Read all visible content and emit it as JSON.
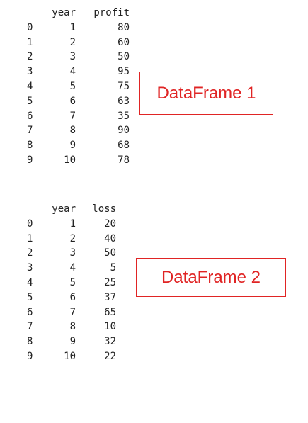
{
  "dataframe1": {
    "columns": [
      "year",
      "profit"
    ],
    "index": [
      "0",
      "1",
      "2",
      "3",
      "4",
      "5",
      "6",
      "7",
      "8",
      "9"
    ],
    "rows": [
      [
        "1",
        "80"
      ],
      [
        "2",
        "60"
      ],
      [
        "3",
        "50"
      ],
      [
        "4",
        "95"
      ],
      [
        "5",
        "75"
      ],
      [
        "6",
        "63"
      ],
      [
        "7",
        "35"
      ],
      [
        "8",
        "90"
      ],
      [
        "9",
        "68"
      ],
      [
        "10",
        "78"
      ]
    ],
    "label": "DataFrame 1",
    "label_color": "#e02424"
  },
  "dataframe2": {
    "columns": [
      "year",
      "loss"
    ],
    "index": [
      "0",
      "1",
      "2",
      "3",
      "4",
      "5",
      "6",
      "7",
      "8",
      "9"
    ],
    "rows": [
      [
        "1",
        "20"
      ],
      [
        "2",
        "40"
      ],
      [
        "3",
        "50"
      ],
      [
        "4",
        "5"
      ],
      [
        "5",
        "25"
      ],
      [
        "6",
        "37"
      ],
      [
        "7",
        "65"
      ],
      [
        "8",
        "10"
      ],
      [
        "9",
        "32"
      ],
      [
        "10",
        "22"
      ]
    ],
    "label": "DataFrame 2",
    "label_color": "#e02424"
  }
}
